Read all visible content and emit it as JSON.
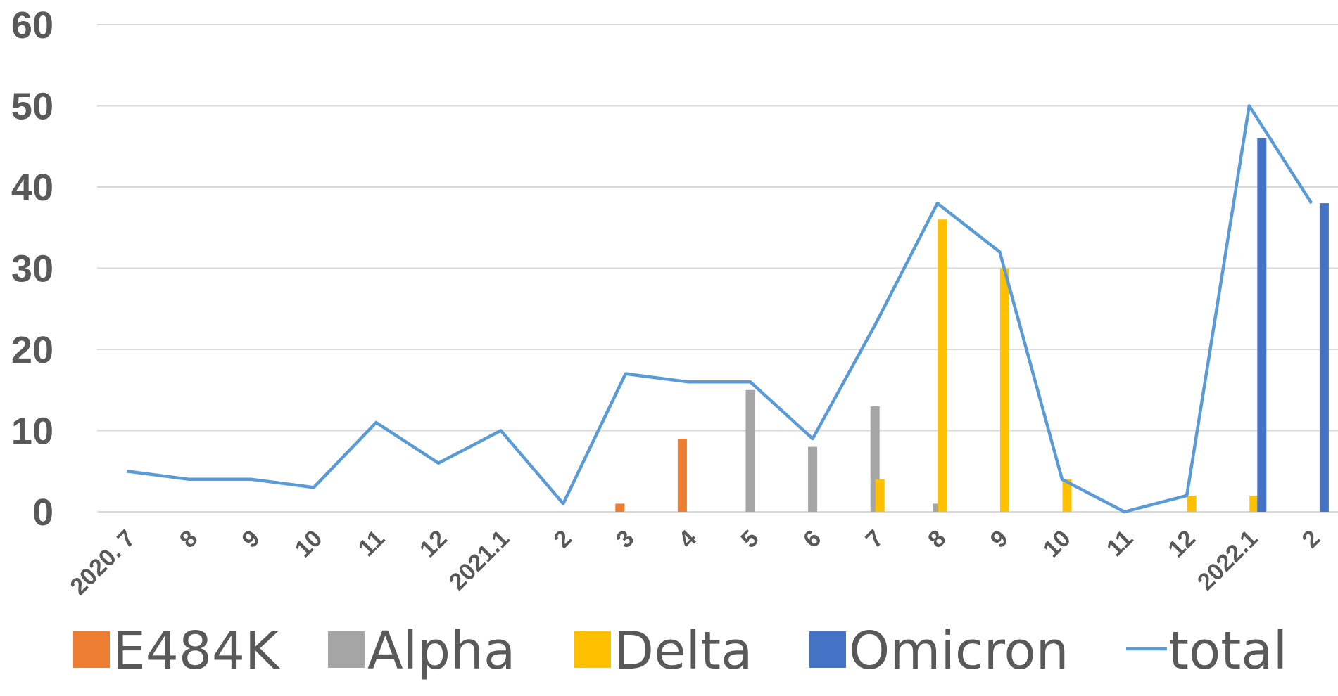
{
  "chart_data": {
    "type": "bar",
    "categories": [
      "2020. 7",
      "8",
      "9",
      "10",
      "11",
      "12",
      "2021.1",
      "2",
      "3",
      "4",
      "5",
      "6",
      "7",
      "8",
      "9",
      "10",
      "11",
      "12",
      "2022.1",
      "2"
    ],
    "series": [
      {
        "name": "E484K",
        "type": "bar",
        "color": "#ed7d31",
        "values": [
          0,
          0,
          0,
          0,
          0,
          0,
          0,
          0,
          1,
          9,
          0,
          0,
          0,
          0,
          0,
          0,
          0,
          0,
          0,
          0
        ]
      },
      {
        "name": "Alpha",
        "type": "bar",
        "color": "#a5a5a5",
        "values": [
          0,
          0,
          0,
          0,
          0,
          0,
          0,
          0,
          0,
          0,
          15,
          8,
          13,
          1,
          0,
          0,
          0,
          0,
          0,
          0
        ]
      },
      {
        "name": "Delta",
        "type": "bar",
        "color": "#ffc000",
        "values": [
          0,
          0,
          0,
          0,
          0,
          0,
          0,
          0,
          0,
          0,
          0,
          0,
          4,
          36,
          30,
          4,
          0,
          2,
          2,
          0
        ]
      },
      {
        "name": "Omicron",
        "type": "bar",
        "color": "#4472c4",
        "values": [
          0,
          0,
          0,
          0,
          0,
          0,
          0,
          0,
          0,
          0,
          0,
          0,
          0,
          0,
          0,
          0,
          0,
          0,
          46,
          38
        ]
      },
      {
        "name": "total",
        "type": "line",
        "color": "#5b9bd5",
        "values": [
          5,
          4,
          4,
          3,
          11,
          6,
          10,
          1,
          17,
          16,
          16,
          9,
          23,
          38,
          32,
          4,
          0,
          2,
          50,
          38
        ]
      }
    ],
    "yticks": [
      "0",
      "10",
      "20",
      "30",
      "40",
      "50",
      "60"
    ],
    "ylim": [
      0,
      60
    ],
    "grid": true,
    "legend_position": "bottom",
    "title": "",
    "xlabel": "",
    "ylabel": ""
  }
}
